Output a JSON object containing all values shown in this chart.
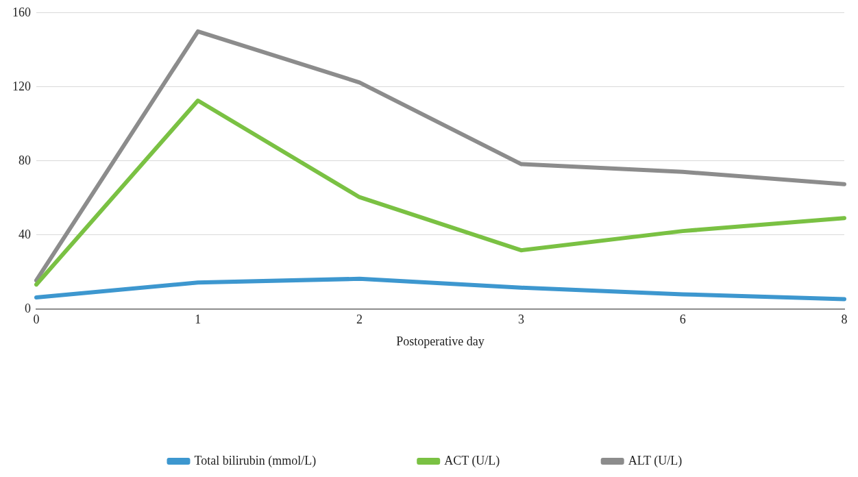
{
  "chart_data": {
    "type": "line",
    "xlabel": "Postoperative day",
    "categories": [
      "0",
      "1",
      "2",
      "3",
      "6",
      "8"
    ],
    "series": [
      {
        "name": "Total bilirubin (mmol/L)",
        "color": "#3d97cf",
        "values": [
          6.2,
          14.3,
          16.3,
          11.5,
          7.9,
          5.3
        ]
      },
      {
        "name": "ACT (U/L)",
        "color": "#7ac143",
        "values": [
          13.2,
          112.6,
          60.4,
          31.7,
          42.1,
          49.1
        ]
      },
      {
        "name": "ALT (U/L)",
        "color": "#8c8c8c",
        "values": [
          15.4,
          150,
          122.4,
          78.3,
          74.1,
          67.4
        ]
      }
    ],
    "ylim": [
      0,
      160
    ],
    "yticks": [
      0,
      40,
      80,
      120,
      160
    ],
    "grid": "y",
    "legend": "bottom",
    "marker": "none",
    "line_style": "solid"
  }
}
